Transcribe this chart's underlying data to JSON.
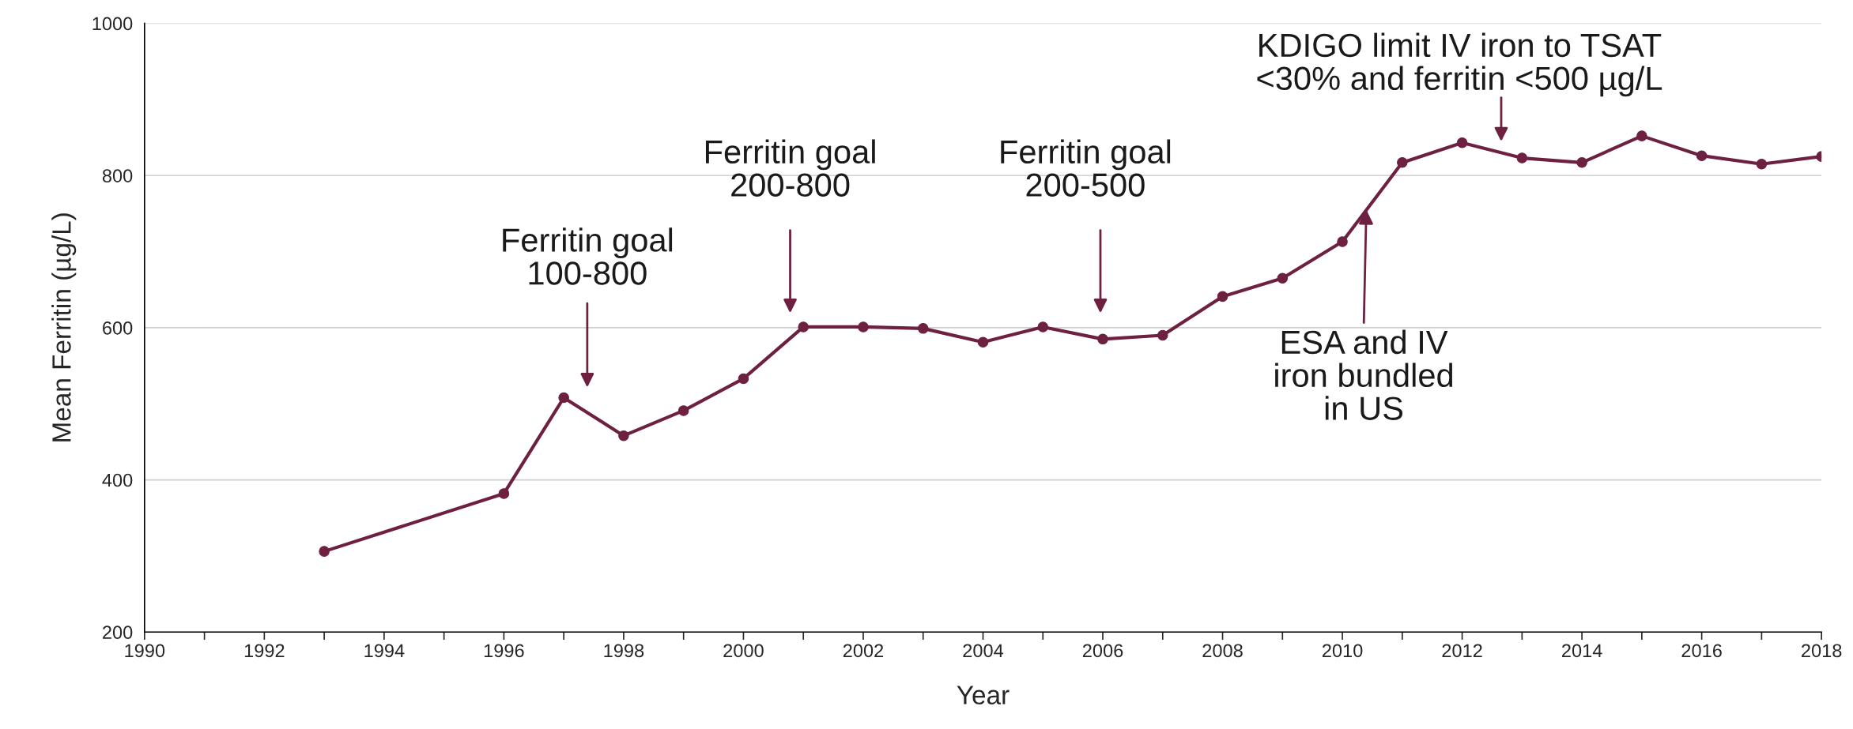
{
  "chart_data": {
    "type": "line",
    "xlabel": "Year",
    "ylabel": "Mean Ferritin (µg/L)",
    "x": [
      1993,
      1996,
      1997,
      1998,
      1999,
      2000,
      2001,
      2002,
      2003,
      2004,
      2005,
      2006,
      2007,
      2008,
      2009,
      2010,
      2011,
      2012,
      2013,
      2014,
      2015,
      2016,
      2017,
      2018
    ],
    "series": [
      {
        "color": "#6e2040",
        "values": [
          306,
          382,
          508,
          458,
          491,
          533,
          601,
          601,
          599,
          581,
          601,
          585,
          590,
          641,
          665,
          713,
          817,
          843,
          823,
          817,
          852,
          826,
          815,
          825
        ]
      }
    ],
    "xlim": [
      1990,
      2018
    ],
    "xticks": [
      1990,
      {
        "value": 1991,
        "label": null
      },
      1992,
      {
        "value": 1993,
        "label": null
      },
      1994,
      {
        "value": 1995,
        "label": null
      },
      1996,
      {
        "value": 1997,
        "label": null
      },
      1998,
      {
        "value": 1999,
        "label": null
      },
      2000,
      {
        "value": 2001,
        "label": null
      },
      2002,
      {
        "value": 2003,
        "label": null
      },
      2004,
      {
        "value": 2005,
        "label": null
      },
      2006,
      {
        "value": 2007,
        "label": null
      },
      2008,
      {
        "value": 2009,
        "label": null
      },
      2010,
      {
        "value": 2011,
        "label": null
      },
      2012,
      {
        "value": 2013,
        "label": null
      },
      2014,
      {
        "value": 2015,
        "label": null
      },
      2016,
      {
        "value": 2017,
        "label": null
      },
      2018
    ],
    "ylim": [
      200,
      1000
    ],
    "yticks": [
      200,
      400,
      600,
      800,
      1000
    ],
    "grid": "y",
    "marker": "circle",
    "line_style": "solid",
    "legend": false,
    "annotations": [
      "Ferritin goal\n100-800",
      "Ferritin goal\n200-800",
      "Ferritin goal\n200-500",
      "KDIGO limit IV iron to TSAT\n<30% and ferritin <500 µg/L",
      {
        "text": "ESA and IV\niron bundled\nin US",
        "x": 2010.4,
        "y": 755
      }
    ]
  }
}
